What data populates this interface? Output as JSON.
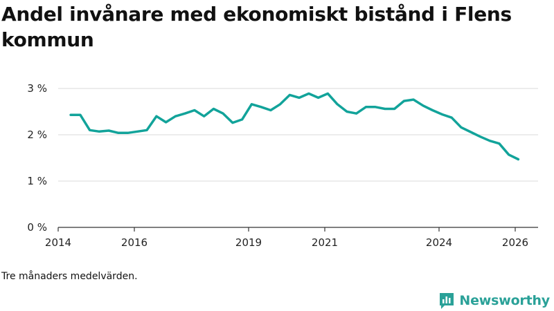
{
  "chart_data": {
    "type": "line",
    "title": "Andel invånare med ekonomiskt bistånd i Flens kommun",
    "xlabel": "",
    "ylabel": "",
    "xlim": [
      2014,
      2026.6
    ],
    "ylim": [
      0,
      3
    ],
    "x_ticks": [
      2014,
      2016,
      2019,
      2021,
      2024,
      2026
    ],
    "y_ticks": [
      {
        "value": 0,
        "label": "0 %"
      },
      {
        "value": 1,
        "label": "1 %"
      },
      {
        "value": 2,
        "label": "2 %"
      },
      {
        "value": 3,
        "label": "3 %"
      }
    ],
    "series": [
      {
        "name": "Andel invånare med ekonomiskt bistånd",
        "color": "#12a39a",
        "x": [
          2014.33,
          2014.58,
          2014.83,
          2015.08,
          2015.33,
          2015.58,
          2015.83,
          2016.08,
          2016.33,
          2016.58,
          2016.83,
          2017.08,
          2017.33,
          2017.58,
          2017.83,
          2018.08,
          2018.33,
          2018.58,
          2018.83,
          2019.08,
          2019.33,
          2019.58,
          2019.83,
          2020.08,
          2020.33,
          2020.58,
          2020.83,
          2021.08,
          2021.33,
          2021.58,
          2021.83,
          2022.08,
          2022.33,
          2022.58,
          2022.83,
          2023.08,
          2023.33,
          2023.58,
          2023.83,
          2024.08,
          2024.33,
          2024.58,
          2024.83,
          2025.08,
          2025.33,
          2025.58,
          2025.83,
          2026.08
        ],
        "values": [
          2.43,
          2.43,
          2.1,
          2.07,
          2.09,
          2.04,
          2.04,
          2.07,
          2.1,
          2.4,
          2.27,
          2.4,
          2.46,
          2.53,
          2.4,
          2.56,
          2.46,
          2.26,
          2.33,
          2.66,
          2.6,
          2.53,
          2.66,
          2.86,
          2.8,
          2.89,
          2.8,
          2.89,
          2.66,
          2.5,
          2.46,
          2.6,
          2.6,
          2.56,
          2.56,
          2.73,
          2.76,
          2.63,
          2.53,
          2.44,
          2.37,
          2.16,
          2.06,
          1.96,
          1.87,
          1.81,
          1.57,
          1.47
        ]
      }
    ]
  },
  "footer": {
    "note": "Tre månaders medelvärden.",
    "brand": "Newsworthy"
  }
}
